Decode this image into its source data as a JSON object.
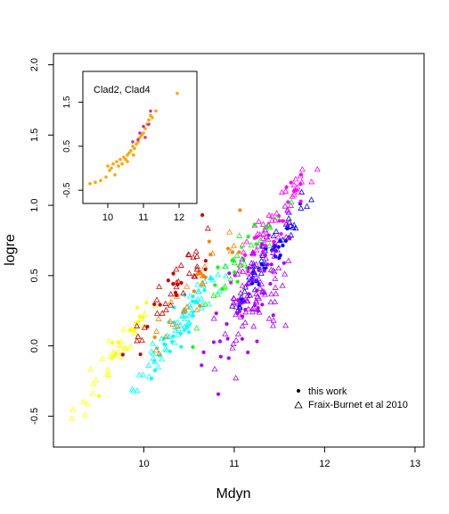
{
  "chart_data": [
    {
      "type": "scatter",
      "title": "",
      "xlabel": "Mdyn",
      "ylabel": "logre",
      "xlim": [
        9.0,
        13.1
      ],
      "ylim": [
        -0.72,
        2.08
      ],
      "x_ticks": [
        "10",
        "11",
        "12",
        "13"
      ],
      "y_ticks": [
        "-0.5",
        "0.0",
        "0.5",
        "1.0",
        "1.5",
        "2.0"
      ],
      "legend_position": "bottom-right",
      "legend": [
        {
          "label": "this work",
          "marker": "filled-circle"
        },
        {
          "label": "Fraix-Burnet et al 2010",
          "marker": "open-triangle"
        }
      ],
      "series": [
        {
          "color": "#FFFF00",
          "x_center": 9.7,
          "y_center": -0.05,
          "slope": 0.9,
          "spread": 0.07,
          "count": 45
        },
        {
          "color": "#00FFFF",
          "x_center": 10.4,
          "y_center": 0.15,
          "slope": 0.9,
          "spread": 0.07,
          "count": 90
        },
        {
          "color": "#0000FF",
          "x_center": 11.35,
          "y_center": 0.6,
          "slope": 0.9,
          "spread": 0.06,
          "count": 75
        },
        {
          "color": "#FF00FF",
          "x_center": 11.4,
          "y_center": 0.85,
          "slope": 0.9,
          "spread": 0.09,
          "count": 70
        },
        {
          "color": "#00FF00",
          "x_center": 11.0,
          "y_center": 0.55,
          "slope": 0.9,
          "spread": 0.08,
          "count": 35
        },
        {
          "color": "#FF8000",
          "x_center": 10.6,
          "y_center": 0.45,
          "slope": 0.9,
          "spread": 0.09,
          "count": 40
        },
        {
          "color": "#CC0000",
          "x_center": 10.3,
          "y_center": 0.4,
          "slope": 0.9,
          "spread": 0.09,
          "count": 45
        },
        {
          "color": "#AA00FF",
          "x_center": 11.2,
          "y_center": 0.35,
          "slope": 0.9,
          "spread": 0.18,
          "count": 120
        }
      ]
    },
    {
      "type": "scatter",
      "inset": true,
      "title": "Clad2, Clad4",
      "xlabel": "",
      "ylabel": "",
      "xlim": [
        9.3,
        12.5
      ],
      "ylim": [
        -0.8,
        2.2
      ],
      "x_ticks": [
        "10",
        "11",
        "12"
      ],
      "y_ticks": [
        "-0.5",
        "0.5",
        "1.5"
      ],
      "series": [
        {
          "color": "#FFA500",
          "points": [
            [
              9.5,
              -0.35
            ],
            [
              9.65,
              -0.32
            ],
            [
              9.8,
              -0.28
            ],
            [
              9.95,
              -0.2
            ],
            [
              10.0,
              0.05
            ],
            [
              10.05,
              -0.05
            ],
            [
              10.1,
              0.0
            ],
            [
              10.15,
              0.1
            ],
            [
              10.2,
              -0.15
            ],
            [
              10.25,
              0.15
            ],
            [
              10.3,
              0.05
            ],
            [
              10.35,
              0.2
            ],
            [
              10.4,
              0.1
            ],
            [
              10.45,
              0.25
            ],
            [
              10.5,
              0.2
            ],
            [
              10.55,
              0.3
            ],
            [
              10.6,
              0.35
            ],
            [
              10.65,
              0.4
            ],
            [
              10.7,
              0.5
            ],
            [
              10.75,
              0.45
            ],
            [
              10.8,
              0.55
            ],
            [
              10.85,
              0.6
            ],
            [
              10.9,
              0.7
            ],
            [
              10.95,
              0.75
            ],
            [
              11.0,
              0.8
            ],
            [
              11.05,
              0.9
            ],
            [
              11.1,
              1.0
            ],
            [
              11.15,
              1.1
            ],
            [
              11.2,
              1.2
            ],
            [
              11.25,
              1.15
            ],
            [
              11.35,
              1.3
            ],
            [
              11.95,
              1.7
            ],
            [
              10.55,
              0.15
            ],
            [
              10.72,
              0.3
            ]
          ]
        },
        {
          "color": "#CC3399",
          "points": [
            [
              10.7,
              0.6
            ],
            [
              10.85,
              0.65
            ],
            [
              10.9,
              0.8
            ],
            [
              11.0,
              0.95
            ],
            [
              11.05,
              0.7
            ],
            [
              11.15,
              1.0
            ],
            [
              11.2,
              1.3
            ]
          ]
        }
      ]
    }
  ]
}
